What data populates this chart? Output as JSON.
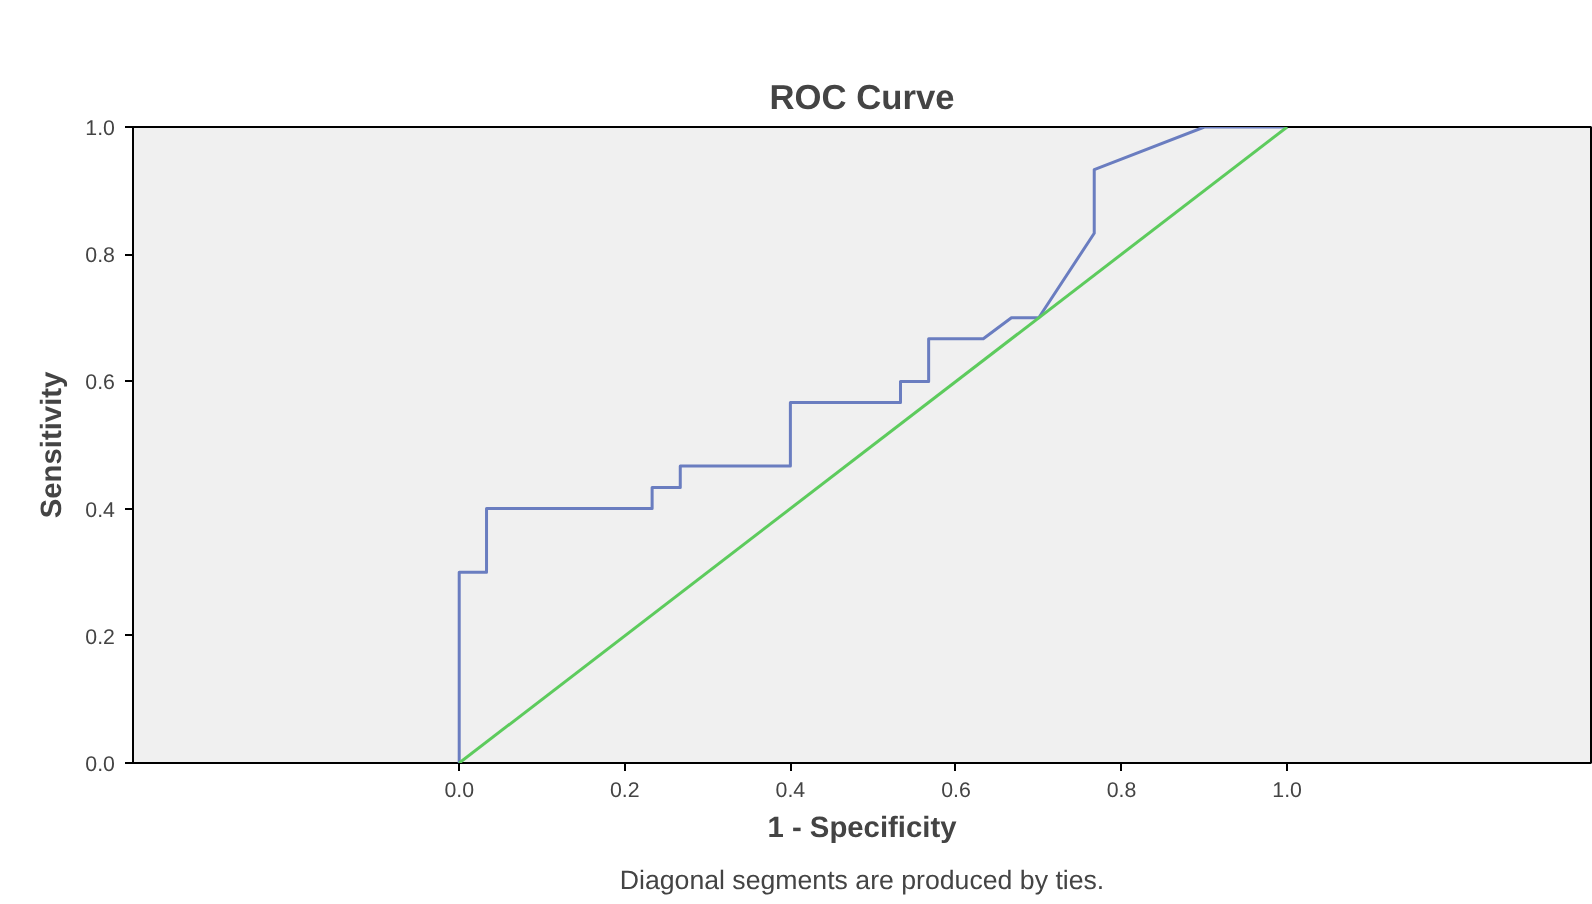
{
  "chart_data": {
    "type": "line",
    "title": "ROC Curve",
    "xlabel": "1 - Specificity",
    "ylabel": "Sensitivity",
    "annotations": [
      "Diagonal segments are produced by ties."
    ],
    "series": [
      {
        "color": "#6a7dc0",
        "x": [
          0,
          0,
          0.033,
          0.033,
          0.233,
          0.233,
          0.267,
          0.267,
          0.4,
          0.4,
          0.533,
          0.533,
          0.567,
          0.567,
          0.633,
          0.667,
          0.7,
          0.767,
          0.767,
          0.9,
          1
        ],
        "values": [
          0,
          0.3,
          0.3,
          0.4,
          0.4,
          0.433,
          0.433,
          0.467,
          0.467,
          0.567,
          0.567,
          0.6,
          0.6,
          0.667,
          0.667,
          0.7,
          0.7,
          0.833,
          0.933,
          1,
          1
        ]
      },
      {
        "color": "#5dcb5d",
        "x": [
          0,
          1
        ],
        "values": [
          0,
          1
        ]
      }
    ],
    "xlim": [
      -0.394,
      1.367
    ],
    "ylim": [
      0,
      1
    ],
    "xticks": [
      {
        "value": 0,
        "label": "0.0"
      },
      {
        "value": 0.2,
        "label": "0.2"
      },
      {
        "value": 0.4,
        "label": "0.4"
      },
      {
        "value": 0.6,
        "label": "0.6"
      },
      {
        "value": 0.8,
        "label": "0.8"
      },
      {
        "value": 1,
        "label": "1.0"
      }
    ],
    "yticks": [
      {
        "value": 0,
        "label": "0.0"
      },
      {
        "value": 0.2,
        "label": "0.2"
      },
      {
        "value": 0.4,
        "label": "0.4"
      },
      {
        "value": 0.6,
        "label": "0.6"
      },
      {
        "value": 0.8,
        "label": "0.8"
      },
      {
        "value": 1,
        "label": "1.0"
      }
    ],
    "line_style": "solid"
  }
}
